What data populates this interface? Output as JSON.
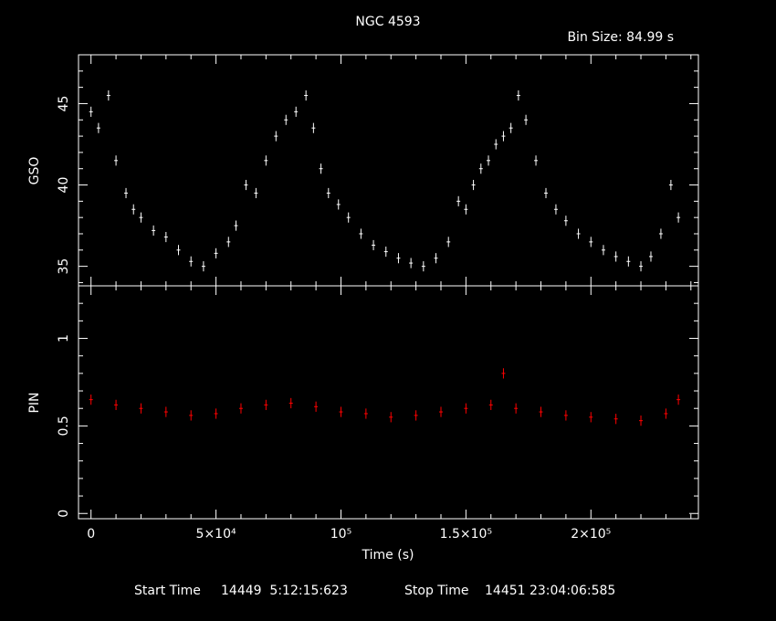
{
  "header": {
    "title": "NGC 4593",
    "bin_size": "Bin Size: 84.99 s"
  },
  "footer": {
    "start_label": "Start Time",
    "start_value": "14449  5:12:15:623",
    "stop_label": "Stop Time",
    "stop_value": "14451 23:04:06:585"
  },
  "colors": {
    "background": "#000000",
    "axes": "#ffffff",
    "gso_series": "#ffffff",
    "pin_series": "#ff0000"
  },
  "chart_data": [
    {
      "type": "scatter",
      "panel": "top",
      "ylabel": "GSO",
      "xlim": [
        -5000,
        243000
      ],
      "ylim": [
        33.8,
        48
      ],
      "yticks": [
        35,
        40,
        45
      ],
      "yticklabels": [
        "35",
        "40",
        "45"
      ],
      "error_bars": true,
      "series": [
        {
          "x": [
            0,
            3000,
            7000,
            10000,
            14000,
            17000,
            20000,
            25000,
            30000,
            35000,
            40000,
            45000,
            50000,
            55000,
            58000,
            62000,
            66000,
            70000,
            74000,
            78000,
            82000,
            86000,
            89000,
            92000,
            95000,
            99000,
            103000,
            108000,
            113000,
            118000,
            123000,
            128000,
            133000,
            138000,
            143000,
            147000,
            150000,
            153000,
            156000,
            159000,
            162000,
            165000,
            168000,
            171000,
            174000,
            178000,
            182000,
            186000,
            190000,
            195000,
            200000,
            205000,
            210000,
            215000,
            220000,
            224000,
            228000,
            232000,
            235000
          ],
          "y": [
            44.5,
            43.5,
            45.5,
            41.5,
            39.5,
            38.5,
            38.0,
            37.2,
            36.8,
            36.0,
            35.3,
            35.0,
            35.8,
            36.5,
            37.5,
            40.0,
            39.5,
            41.5,
            43.0,
            44.0,
            44.5,
            45.5,
            43.5,
            41.0,
            39.5,
            38.8,
            38.0,
            37.0,
            36.3,
            35.9,
            35.5,
            35.2,
            35.0,
            35.5,
            36.5,
            39.0,
            38.5,
            40.0,
            41.0,
            41.5,
            42.5,
            43.0,
            43.5,
            45.5,
            44.0,
            41.5,
            39.5,
            38.5,
            37.8,
            37.0,
            36.5,
            36.0,
            35.6,
            35.3,
            35.0,
            35.6,
            37.0,
            40.0,
            38.0
          ]
        }
      ]
    },
    {
      "type": "scatter",
      "panel": "bottom",
      "ylabel": "PIN",
      "xlabel": "Time (s)",
      "xlim": [
        -5000,
        243000
      ],
      "ylim": [
        -0.03,
        1.3
      ],
      "xticks": [
        0,
        50000,
        100000,
        150000,
        200000
      ],
      "xticklabels": [
        "0",
        "5×10⁴",
        "10⁵",
        "1.5×10⁵",
        "2×10⁵"
      ],
      "yticks": [
        0,
        0.5,
        1
      ],
      "yticklabels": [
        "0",
        "0.5",
        "1"
      ],
      "error_bars": true,
      "series": [
        {
          "x": [
            0,
            10000,
            20000,
            30000,
            40000,
            50000,
            60000,
            70000,
            80000,
            90000,
            100000,
            110000,
            120000,
            130000,
            140000,
            150000,
            160000,
            165000,
            170000,
            180000,
            190000,
            200000,
            210000,
            220000,
            230000,
            235000
          ],
          "y": [
            0.65,
            0.62,
            0.6,
            0.58,
            0.56,
            0.57,
            0.6,
            0.62,
            0.63,
            0.61,
            0.58,
            0.57,
            0.55,
            0.56,
            0.58,
            0.6,
            0.62,
            0.8,
            0.6,
            0.58,
            0.56,
            0.55,
            0.54,
            0.53,
            0.57,
            0.65
          ]
        }
      ]
    }
  ]
}
